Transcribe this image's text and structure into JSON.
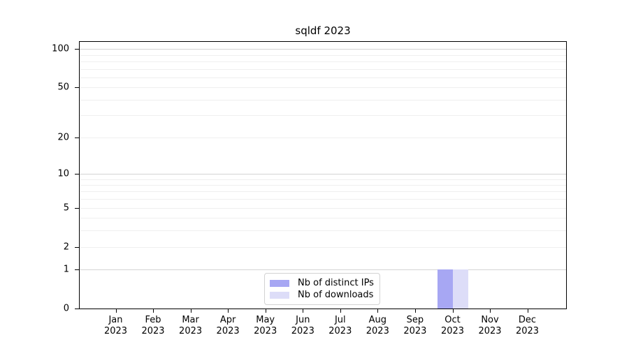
{
  "title": "sqldf 2023",
  "chart_data": {
    "type": "bar",
    "title": "sqldf 2023",
    "xlabel": "",
    "ylabel": "",
    "yscale": "log1p",
    "ylim": [
      0,
      113.5
    ],
    "yticks": [
      0,
      1,
      2,
      5,
      10,
      20,
      50,
      100
    ],
    "grid": {
      "major": [
        1,
        10,
        100
      ],
      "minor": [
        3,
        4,
        6,
        7,
        8,
        9,
        30,
        40,
        60,
        70,
        80,
        90
      ],
      "light_labeled": [
        2,
        5,
        20,
        50
      ]
    },
    "grid_colors": {
      "major": "#d4d4d4",
      "minor": "#efefef"
    },
    "categories": [
      "Jan 2023",
      "Feb 2023",
      "Mar 2023",
      "Apr 2023",
      "May 2023",
      "Jun 2023",
      "Jul 2023",
      "Aug 2023",
      "Sep 2023",
      "Oct 2023",
      "Nov 2023",
      "Dec 2023"
    ],
    "series": [
      {
        "name": "Nb of distinct IPs",
        "color": "#a7a7f3",
        "values": [
          0,
          0,
          0,
          0,
          0,
          0,
          0,
          0,
          0,
          1,
          0,
          0
        ]
      },
      {
        "name": "Nb of downloads",
        "color": "#ddddf8",
        "values": [
          0,
          0,
          0,
          0,
          0,
          0,
          0,
          0,
          0,
          1,
          0,
          0
        ]
      }
    ],
    "legend_position": "inside-bottom-center",
    "axis_color": "#000000",
    "background": "#ffffff"
  }
}
